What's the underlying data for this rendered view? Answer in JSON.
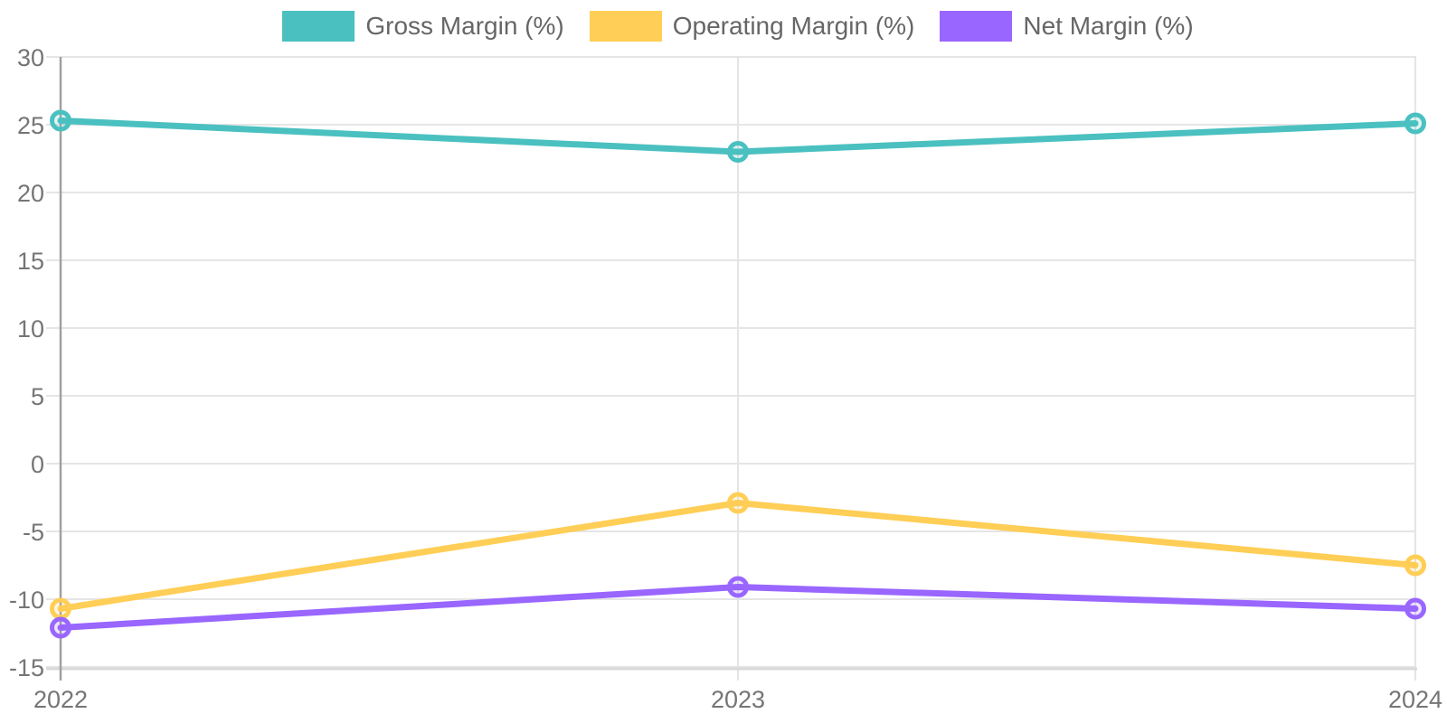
{
  "chart_data": {
    "type": "line",
    "title": "",
    "xlabel": "",
    "ylabel": "",
    "categories": [
      "2022",
      "2023",
      "2024"
    ],
    "series": [
      {
        "name": "Gross Margin (%)",
        "color": "#4BC0C0",
        "values": [
          25.3,
          23.0,
          25.1
        ]
      },
      {
        "name": "Operating Margin (%)",
        "color": "#FFCE56",
        "values": [
          -10.7,
          -2.9,
          -7.5
        ]
      },
      {
        "name": "Net Margin (%)",
        "color": "#9966FF",
        "values": [
          -12.1,
          -9.1,
          -10.7
        ]
      }
    ],
    "ylim": [
      -15,
      30
    ],
    "yticks": [
      30,
      25,
      20,
      15,
      10,
      5,
      0,
      -5,
      -10,
      -15
    ],
    "grid": true,
    "legend_position": "top"
  },
  "colors": {
    "background": "#ffffff",
    "grid_line": "#e5e5e5",
    "axis_line": "#a0a0a0",
    "axis_border_bottom": "#d9d9d9",
    "tick_label": "#757575",
    "legend_label": "#666666"
  }
}
